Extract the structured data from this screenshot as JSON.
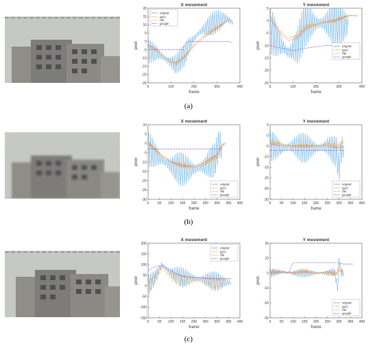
{
  "captions": [
    "(a)",
    "(b)",
    "(c)"
  ],
  "colors": {
    "original": "#5aa9e6",
    "gyro": "#f2a93b",
    "rfel": "#e07a5f",
    "google": "#8f6fd1"
  },
  "chart_data": [
    {
      "type": "line",
      "row": "a",
      "title": "X movement",
      "xlabel": "frame",
      "ylabel": "pixel",
      "xlim": [
        0,
        400
      ],
      "ylim": [
        -25,
        20
      ],
      "xticks": [
        0,
        100,
        200,
        300,
        400
      ],
      "yticks": [
        -25,
        -20,
        -15,
        -10,
        -5,
        0,
        5,
        10,
        15,
        20
      ],
      "legend": [
        "orignal",
        "gyro",
        "rfel",
        "google"
      ],
      "legend_position": "top-left",
      "series": [
        {
          "key": "original",
          "amp": 7,
          "period": 8,
          "points": [
            [
              0,
              -6
            ],
            [
              40,
              -7
            ],
            [
              80,
              -11
            ],
            [
              120,
              -14
            ],
            [
              160,
              -8
            ],
            [
              180,
              -2
            ],
            [
              220,
              5
            ],
            [
              260,
              9
            ],
            [
              300,
              12
            ],
            [
              340,
              14
            ],
            [
              360,
              12
            ],
            [
              370,
              11
            ]
          ]
        },
        {
          "key": "gyro",
          "amp": 1.2,
          "period": 6,
          "points": [
            [
              0,
              -3
            ],
            [
              40,
              -6
            ],
            [
              80,
              -11
            ],
            [
              120,
              -14
            ],
            [
              160,
              -9
            ],
            [
              200,
              -2
            ],
            [
              240,
              3
            ],
            [
              280,
              7
            ],
            [
              320,
              10
            ],
            [
              350,
              14
            ],
            [
              370,
              12
            ]
          ]
        },
        {
          "key": "rfel",
          "amp": 0.6,
          "period": 6,
          "points": [
            [
              0,
              -2
            ],
            [
              40,
              -5
            ],
            [
              80,
              -10
            ],
            [
              120,
              -13
            ],
            [
              160,
              -9
            ],
            [
              200,
              -3
            ],
            [
              240,
              2
            ],
            [
              280,
              6
            ],
            [
              320,
              10
            ],
            [
              360,
              13
            ]
          ]
        },
        {
          "key": "google",
          "amp": 0,
          "period": 6,
          "points": [
            [
              0,
              -5
            ],
            [
              150,
              -5
            ],
            [
              170,
              0
            ],
            [
              350,
              0
            ],
            [
              370,
              -1
            ]
          ]
        }
      ]
    },
    {
      "type": "line",
      "row": "a",
      "title": "Y movement",
      "xlabel": "frame",
      "ylabel": "pixel",
      "xlim": [
        0,
        400
      ],
      "ylim": [
        -25,
        5
      ],
      "xticks": [
        0,
        100,
        200,
        300,
        400
      ],
      "yticks": [
        -25,
        -20,
        -15,
        -10,
        -5,
        0,
        5
      ],
      "legend": [
        "orignal",
        "gyro",
        "rfel",
        "google"
      ],
      "legend_position": "middle-right",
      "series": [
        {
          "key": "original",
          "amp": 9,
          "period": 8,
          "points": [
            [
              0,
              -4
            ],
            [
              40,
              -9
            ],
            [
              80,
              -13
            ],
            [
              120,
              -10
            ],
            [
              150,
              -2
            ],
            [
              180,
              -1
            ],
            [
              260,
              -1
            ],
            [
              340,
              -2
            ]
          ]
        },
        {
          "key": "gyro",
          "amp": 1,
          "period": 6,
          "points": [
            [
              0,
              2
            ],
            [
              40,
              -4
            ],
            [
              80,
              -7
            ],
            [
              120,
              -6
            ],
            [
              160,
              -2
            ],
            [
              220,
              -1
            ],
            [
              280,
              0
            ],
            [
              340,
              2
            ],
            [
              380,
              2
            ]
          ]
        },
        {
          "key": "rfel",
          "amp": 0.5,
          "period": 6,
          "points": [
            [
              0,
              1
            ],
            [
              40,
              -5
            ],
            [
              80,
              -8
            ],
            [
              120,
              -7
            ],
            [
              160,
              -3
            ],
            [
              220,
              -1
            ],
            [
              280,
              0
            ],
            [
              340,
              2
            ],
            [
              380,
              2
            ]
          ]
        },
        {
          "key": "google",
          "amp": 0,
          "period": 6,
          "points": [
            [
              0,
              -10
            ],
            [
              100,
              -12
            ],
            [
              160,
              -11
            ],
            [
              240,
              -10
            ],
            [
              380,
              -10
            ]
          ]
        }
      ]
    },
    {
      "type": "line",
      "row": "b",
      "title": "X movement",
      "xlabel": "frame",
      "ylabel": "pixel",
      "xlim": [
        0,
        400
      ],
      "ylim": [
        -30,
        10
      ],
      "xticks": [
        0,
        50,
        100,
        150,
        200,
        250,
        300,
        350,
        400
      ],
      "yticks": [
        -30,
        -25,
        -20,
        -15,
        -10,
        -5,
        0,
        5,
        10
      ],
      "legend": [
        "orignal",
        "gyro",
        "rfel",
        "google"
      ],
      "legend_position": "bottom-right",
      "series": [
        {
          "key": "original",
          "amp": 9,
          "period": 8,
          "points": [
            [
              0,
              -3
            ],
            [
              50,
              -8
            ],
            [
              100,
              -12
            ],
            [
              150,
              -14
            ],
            [
              200,
              -14
            ],
            [
              250,
              -12
            ],
            [
              290,
              -9
            ],
            [
              310,
              0
            ],
            [
              320,
              -2
            ]
          ]
        },
        {
          "key": "gyro",
          "amp": 1.5,
          "period": 6,
          "points": [
            [
              0,
              0
            ],
            [
              50,
              -5
            ],
            [
              100,
              -10
            ],
            [
              150,
              -12
            ],
            [
              200,
              -13
            ],
            [
              250,
              -11
            ],
            [
              300,
              -7
            ],
            [
              320,
              -1
            ],
            [
              340,
              0
            ]
          ]
        },
        {
          "key": "rfel",
          "amp": 0.8,
          "period": 6,
          "points": [
            [
              0,
              0
            ],
            [
              50,
              -6
            ],
            [
              100,
              -10
            ],
            [
              150,
              -12
            ],
            [
              200,
              -12
            ],
            [
              250,
              -10
            ],
            [
              300,
              -6
            ],
            [
              330,
              0
            ]
          ]
        },
        {
          "key": "google",
          "amp": 0,
          "period": 6,
          "points": [
            [
              0,
              -3
            ],
            [
              300,
              -3
            ],
            [
              320,
              -3
            ]
          ]
        }
      ]
    },
    {
      "type": "line",
      "row": "b",
      "title": "Y movement",
      "xlabel": "frame",
      "ylabel": "pixel",
      "xlim": [
        0,
        400
      ],
      "ylim": [
        -30,
        5
      ],
      "xticks": [
        0,
        50,
        100,
        150,
        200,
        250,
        300,
        350,
        400
      ],
      "yticks": [
        -30,
        -25,
        -20,
        -15,
        -10,
        -5,
        0,
        5
      ],
      "legend": [
        "orignal",
        "gyro",
        "rfel",
        "google"
      ],
      "legend_position": "bottom-right",
      "series": [
        {
          "key": "original",
          "amp": 7,
          "period": 8,
          "points": [
            [
              0,
              -5
            ],
            [
              50,
              -6
            ],
            [
              100,
              -5
            ],
            [
              150,
              -6
            ],
            [
              200,
              -6
            ],
            [
              250,
              -5
            ],
            [
              290,
              -8
            ],
            [
              300,
              -16
            ],
            [
              310,
              -7
            ],
            [
              320,
              -5
            ]
          ]
        },
        {
          "key": "gyro",
          "amp": 1.2,
          "period": 6,
          "points": [
            [
              0,
              -3
            ],
            [
              50,
              -4
            ],
            [
              100,
              -5
            ],
            [
              150,
              -5
            ],
            [
              200,
              -5
            ],
            [
              250,
              -4
            ],
            [
              290,
              -5
            ],
            [
              320,
              -3
            ]
          ]
        },
        {
          "key": "rfel",
          "amp": 0.6,
          "period": 6,
          "points": [
            [
              0,
              -4
            ],
            [
              50,
              -5
            ],
            [
              100,
              -5
            ],
            [
              150,
              -5
            ],
            [
              200,
              -5
            ],
            [
              250,
              -5
            ],
            [
              300,
              -6
            ],
            [
              320,
              -5
            ]
          ]
        },
        {
          "key": "google",
          "amp": 0,
          "period": 6,
          "points": [
            [
              0,
              -7
            ],
            [
              320,
              -7
            ]
          ]
        }
      ]
    },
    {
      "type": "line",
      "row": "c",
      "title": "X movement",
      "xlabel": "frame",
      "ylabel": "pixel",
      "xlim": [
        0,
        400
      ],
      "ylim": [
        -150,
        200
      ],
      "xticks": [
        0,
        50,
        100,
        150,
        200,
        250,
        300,
        350,
        400
      ],
      "yticks": [
        -150,
        -100,
        -50,
        0,
        50,
        100,
        150,
        200
      ],
      "legend": [
        "orignal",
        "gyro",
        "rfel",
        "google"
      ],
      "legend_position": "top-right",
      "series": [
        {
          "key": "original",
          "amp": 45,
          "period": 8,
          "points": [
            [
              0,
              0
            ],
            [
              30,
              40
            ],
            [
              60,
              100
            ],
            [
              100,
              60
            ],
            [
              150,
              40
            ],
            [
              200,
              35
            ],
            [
              250,
              30
            ],
            [
              300,
              20
            ],
            [
              350,
              15
            ],
            [
              360,
              15
            ]
          ]
        },
        {
          "key": "gyro",
          "amp": 30,
          "period": 14,
          "points": [
            [
              0,
              0
            ],
            [
              30,
              30
            ],
            [
              60,
              80
            ],
            [
              100,
              40
            ],
            [
              150,
              20
            ],
            [
              200,
              25
            ],
            [
              250,
              20
            ],
            [
              300,
              15
            ],
            [
              330,
              10
            ]
          ]
        },
        {
          "key": "rfel",
          "amp": 3,
          "period": 6,
          "points": [
            [
              0,
              10
            ],
            [
              30,
              50
            ],
            [
              60,
              90
            ],
            [
              100,
              60
            ],
            [
              150,
              45
            ],
            [
              200,
              40
            ],
            [
              250,
              35
            ],
            [
              300,
              30
            ],
            [
              360,
              30
            ]
          ]
        },
        {
          "key": "google",
          "amp": 0,
          "period": 6,
          "points": [
            [
              0,
              70
            ],
            [
              30,
              90
            ],
            [
              60,
              95
            ],
            [
              100,
              70
            ],
            [
              150,
              45
            ],
            [
              200,
              38
            ],
            [
              250,
              36
            ],
            [
              300,
              35
            ],
            [
              360,
              35
            ]
          ]
        }
      ]
    },
    {
      "type": "line",
      "row": "c",
      "title": "Y movement",
      "xlabel": "frame",
      "ylabel": "pixel",
      "xlim": [
        0,
        400
      ],
      "ylim": [
        -30,
        20
      ],
      "xticks": [
        0,
        50,
        100,
        150,
        200,
        250,
        300,
        350,
        400
      ],
      "yticks": [
        -30,
        -20,
        -10,
        0,
        10,
        20
      ],
      "legend": [
        "orignal",
        "gyro",
        "rfel",
        "google"
      ],
      "legend_position": "bottom-right",
      "series": [
        {
          "key": "original",
          "amp": 3,
          "period": 8,
          "points": [
            [
              0,
              0
            ],
            [
              50,
              1
            ],
            [
              100,
              0
            ],
            [
              150,
              0
            ],
            [
              200,
              0
            ],
            [
              250,
              0
            ],
            [
              280,
              1
            ],
            [
              295,
              -10
            ],
            [
              300,
              10
            ],
            [
              310,
              0
            ],
            [
              320,
              0
            ]
          ]
        },
        {
          "key": "gyro",
          "amp": 1.5,
          "period": 6,
          "points": [
            [
              0,
              0
            ],
            [
              50,
              1
            ],
            [
              100,
              0
            ],
            [
              150,
              1
            ],
            [
              200,
              0
            ],
            [
              250,
              0
            ],
            [
              290,
              -1
            ],
            [
              300,
              5
            ],
            [
              320,
              0
            ]
          ]
        },
        {
          "key": "rfel",
          "amp": 1,
          "period": 6,
          "points": [
            [
              0,
              1
            ],
            [
              50,
              1
            ],
            [
              100,
              0
            ],
            [
              150,
              1
            ],
            [
              200,
              0
            ],
            [
              250,
              1
            ],
            [
              290,
              0
            ],
            [
              300,
              2
            ],
            [
              320,
              1
            ]
          ]
        },
        {
          "key": "google",
          "amp": 0,
          "period": 6,
          "points": [
            [
              0,
              0
            ],
            [
              80,
              0
            ],
            [
              100,
              7
            ],
            [
              300,
              7
            ],
            [
              320,
              6
            ],
            [
              360,
              6
            ]
          ]
        }
      ]
    }
  ]
}
